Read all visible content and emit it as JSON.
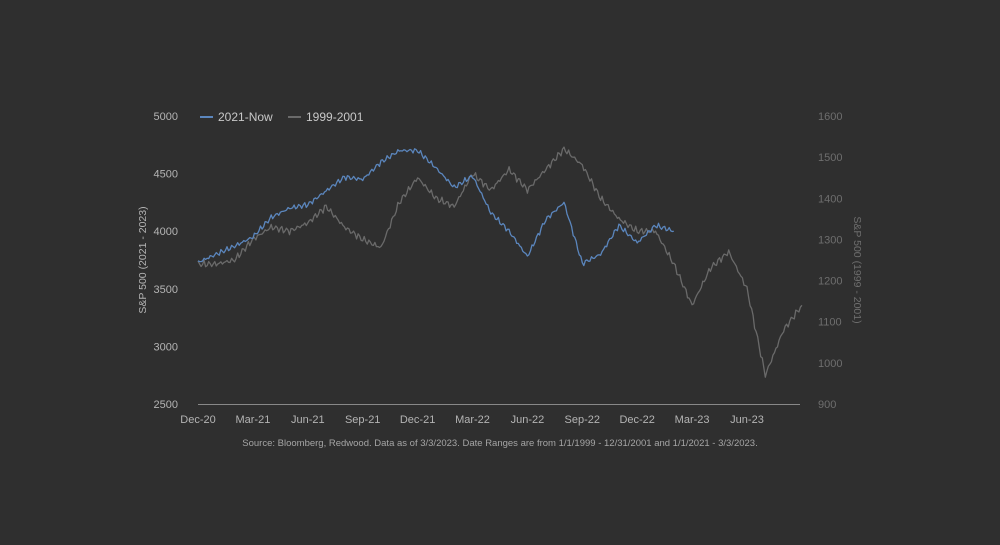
{
  "colors": {
    "background": "#2f2f2f",
    "series_2021": "#5b86bd",
    "series_1999": "#6a6a6a",
    "text": "#b4b4b4",
    "source_text": "#a5a5a5",
    "axis": "#888888"
  },
  "source_note": "Source: Bloomberg, Redwood. Data as of 3/3/2023. Date Ranges are from 1/1/1999 - 12/31/2001 and 1/1/2021 - 3/3/2023.",
  "chart_data": {
    "type": "line",
    "title": "",
    "legend_position": "top-left",
    "grid": false,
    "x_ticks": [
      "Dec-20",
      "Mar-21",
      "Jun-21",
      "Sep-21",
      "Dec-21",
      "Mar-22",
      "Jun-22",
      "Sep-22",
      "Dec-22",
      "Mar-23",
      "Jun-23"
    ],
    "y_left": {
      "label": "S&P 500 (2021 - 2023)",
      "range": [
        2500,
        5000
      ],
      "ticks": [
        "2500",
        "3000",
        "3500",
        "4000",
        "4500",
        "5000"
      ]
    },
    "y_right": {
      "label": "S&P 500 (1999 - 2001)",
      "range": [
        900,
        1600
      ],
      "ticks": [
        "900",
        "1000",
        "1100",
        "1200",
        "1300",
        "1400",
        "1500",
        "1600"
      ]
    },
    "series": [
      {
        "name": "2021-Now",
        "axis": "left",
        "x": [
          "Dec-20",
          "Jan-21",
          "Feb-21",
          "Mar-21",
          "Apr-21",
          "May-21",
          "Jun-21",
          "Jul-21",
          "Aug-21",
          "Sep-21",
          "Oct-21",
          "Nov-21",
          "Dec-21",
          "Jan-22",
          "Feb-22",
          "Mar-22",
          "Apr-22",
          "May-22",
          "Jun-22",
          "Jul-22",
          "Aug-22",
          "Sep-22",
          "Oct-22",
          "Nov-22",
          "Dec-22",
          "Jan-23",
          "Feb-23"
        ],
        "values": [
          3730,
          3800,
          3870,
          3950,
          4120,
          4200,
          4230,
          4350,
          4470,
          4450,
          4600,
          4700,
          4700,
          4550,
          4380,
          4480,
          4160,
          4000,
          3780,
          4100,
          4250,
          3720,
          3800,
          4050,
          3900,
          4050,
          4000
        ]
      },
      {
        "name": "1999-2001",
        "axis": "right",
        "x": [
          "Dec-20",
          "Jan-21",
          "Feb-21",
          "Mar-21",
          "Apr-21",
          "May-21",
          "Jun-21",
          "Jul-21",
          "Aug-21",
          "Sep-21",
          "Oct-21",
          "Nov-21",
          "Dec-21",
          "Jan-22",
          "Feb-22",
          "Mar-22",
          "Apr-22",
          "May-22",
          "Jun-22",
          "Jul-22",
          "Aug-22",
          "Sep-22",
          "Oct-22",
          "Nov-22",
          "Dec-22",
          "Jan-23",
          "Feb-23",
          "Mar-23",
          "Apr-23",
          "May-23",
          "Jun-23",
          "Jul-23",
          "Aug-23",
          "Sep-23"
        ],
        "values": [
          1240,
          1240,
          1250,
          1300,
          1330,
          1320,
          1340,
          1380,
          1330,
          1300,
          1280,
          1390,
          1450,
          1400,
          1380,
          1460,
          1420,
          1470,
          1420,
          1470,
          1520,
          1480,
          1400,
          1350,
          1320,
          1320,
          1240,
          1140,
          1230,
          1270,
          1180,
          970,
          1080,
          1140
        ]
      }
    ]
  }
}
